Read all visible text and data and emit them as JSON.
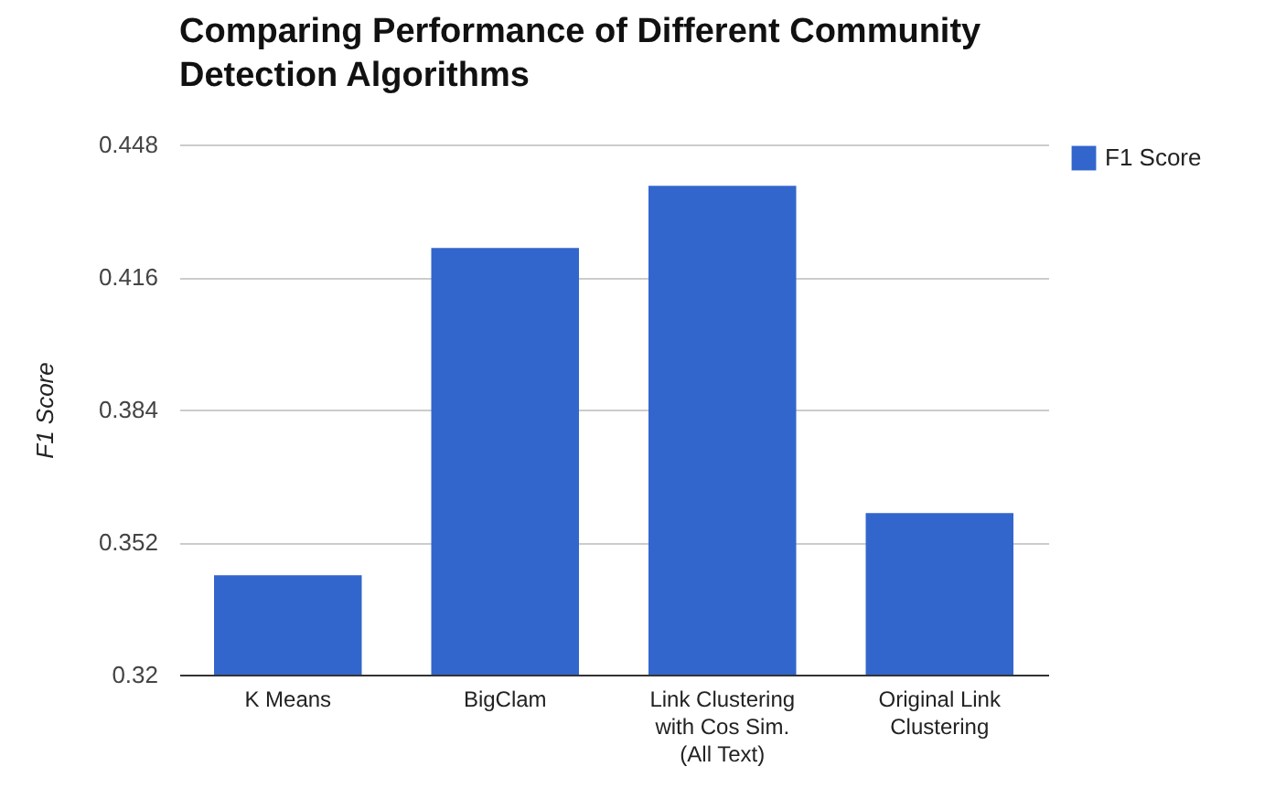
{
  "chart_data": {
    "type": "bar",
    "title": "Comparing Performance of Different Community Detection Algorithms",
    "ylabel": "F1 Score",
    "categories": [
      "K Means",
      "BigClam",
      "Link Clustering with Cos Sim. (All Text)",
      "Original Link Clustering"
    ],
    "series": [
      {
        "name": "F1 Score",
        "color": "#3366cc",
        "values": [
          0.344,
          0.423,
          0.438,
          0.359
        ]
      }
    ],
    "ylim": [
      0.32,
      0.448
    ],
    "yticks": [
      0.32,
      0.352,
      0.384,
      0.416,
      0.448
    ],
    "grid": "y",
    "legend": "top right"
  }
}
